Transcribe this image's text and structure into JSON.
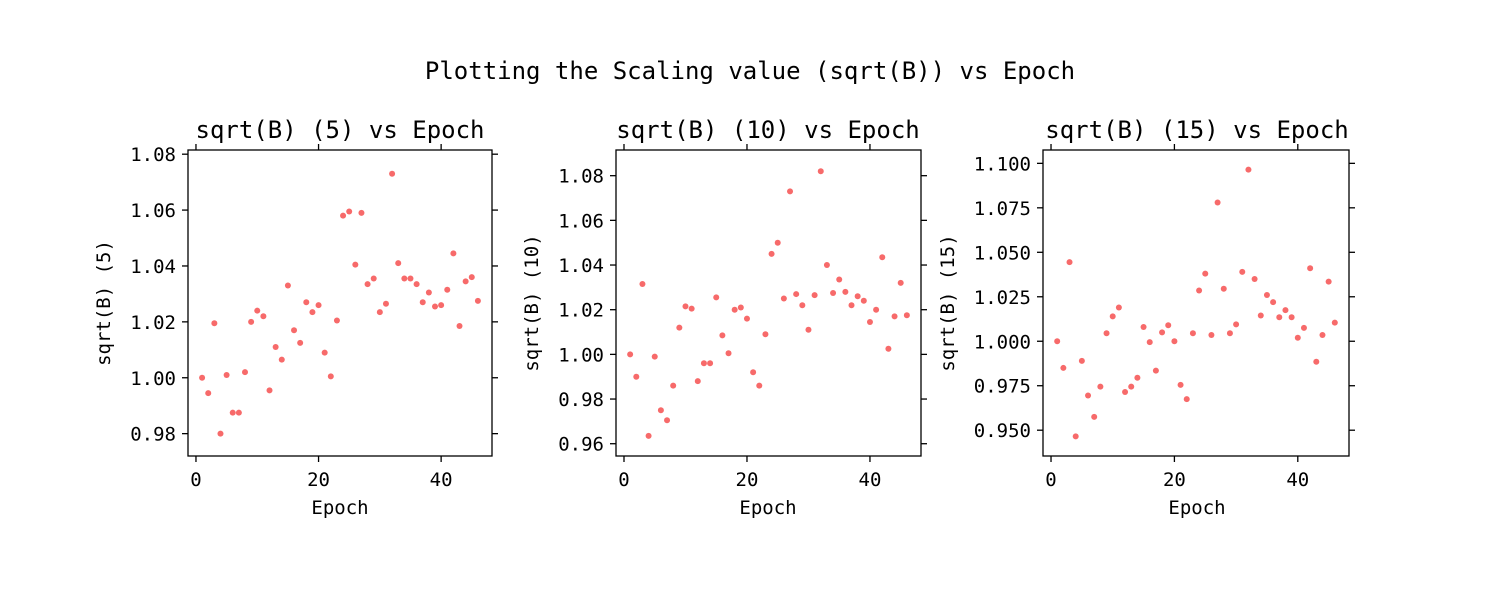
{
  "suptitle": "Plotting the Scaling value (sqrt(B)) vs Epoch",
  "colors": {
    "marker": "#f76a6a",
    "axes": "#000000",
    "background": "#ffffff"
  },
  "chart_data": [
    {
      "type": "scatter",
      "title": "sqrt(B) (5) vs Epoch",
      "xlabel": "Epoch",
      "ylabel": "sqrt(B) (5)",
      "xlim": [
        -1.3,
        48.3
      ],
      "ylim": [
        0.972,
        1.0815
      ],
      "xticks": [
        0,
        20,
        40
      ],
      "xtick_labels": [
        "0",
        "20",
        "40"
      ],
      "yticks": [
        0.98,
        1.0,
        1.02,
        1.04,
        1.06,
        1.08
      ],
      "ytick_labels": [
        "0.98",
        "1.00",
        "1.02",
        "1.04",
        "1.06",
        "1.08"
      ],
      "grid": false,
      "x": [
        1,
        2,
        3,
        4,
        5,
        6,
        7,
        8,
        9,
        10,
        11,
        12,
        13,
        14,
        15,
        16,
        17,
        18,
        19,
        20,
        21,
        22,
        23,
        24,
        25,
        26,
        27,
        28,
        29,
        30,
        31,
        32,
        33,
        34,
        35,
        36,
        37,
        38,
        39,
        40,
        41,
        42,
        43,
        44,
        45,
        46
      ],
      "y": [
        1.0,
        0.9945,
        1.0195,
        0.98,
        1.001,
        0.9875,
        0.9875,
        1.002,
        1.02,
        1.024,
        1.022,
        0.9955,
        1.011,
        1.0065,
        1.033,
        1.017,
        1.0125,
        1.027,
        1.0235,
        1.026,
        1.009,
        1.0005,
        1.0205,
        1.058,
        1.0595,
        1.0405,
        1.059,
        1.0335,
        1.0355,
        1.0235,
        1.0265,
        1.073,
        1.041,
        1.0355,
        1.0355,
        1.0335,
        1.027,
        1.0305,
        1.0255,
        1.026,
        1.0315,
        1.0445,
        1.0185,
        1.0345,
        1.036,
        1.0275
      ]
    },
    {
      "type": "scatter",
      "title": "sqrt(B) (10) vs Epoch",
      "xlabel": "Epoch",
      "ylabel": "sqrt(B) (10)",
      "xlim": [
        -1.3,
        48.3
      ],
      "ylim": [
        0.9545,
        1.0915
      ],
      "xticks": [
        0,
        20,
        40
      ],
      "xtick_labels": [
        "0",
        "20",
        "40"
      ],
      "yticks": [
        0.96,
        0.98,
        1.0,
        1.02,
        1.04,
        1.06,
        1.08
      ],
      "ytick_labels": [
        "0.96",
        "0.98",
        "1.00",
        "1.02",
        "1.04",
        "1.06",
        "1.08"
      ],
      "grid": false,
      "x": [
        1,
        2,
        3,
        4,
        5,
        6,
        7,
        8,
        9,
        10,
        11,
        12,
        13,
        14,
        15,
        16,
        17,
        18,
        19,
        20,
        21,
        22,
        23,
        24,
        25,
        26,
        27,
        28,
        29,
        30,
        31,
        32,
        33,
        34,
        35,
        36,
        37,
        38,
        39,
        40,
        41,
        42,
        43,
        44,
        45,
        46
      ],
      "y": [
        1.0,
        0.99,
        1.0315,
        0.9635,
        0.999,
        0.975,
        0.9705,
        0.986,
        1.012,
        1.0215,
        1.0205,
        0.988,
        0.996,
        0.996,
        1.0255,
        1.0085,
        1.0005,
        1.02,
        1.021,
        1.016,
        0.992,
        0.986,
        1.009,
        1.045,
        1.05,
        1.025,
        1.073,
        1.027,
        1.022,
        1.011,
        1.0265,
        1.082,
        1.04,
        1.0275,
        1.0335,
        1.028,
        1.022,
        1.026,
        1.024,
        1.0145,
        1.02,
        1.0435,
        1.0025,
        1.017,
        1.032,
        1.0175
      ]
    },
    {
      "type": "scatter",
      "title": "sqrt(B) (15) vs Epoch",
      "xlabel": "Epoch",
      "ylabel": "sqrt(B) (15)",
      "xlim": [
        -1.3,
        48.3
      ],
      "ylim": [
        0.9355,
        1.1075
      ],
      "xticks": [
        0,
        20,
        40
      ],
      "xtick_labels": [
        "0",
        "20",
        "40"
      ],
      "yticks": [
        0.95,
        0.975,
        1.0,
        1.025,
        1.05,
        1.075,
        1.1
      ],
      "ytick_labels": [
        "0.950",
        "0.975",
        "1.000",
        "1.025",
        "1.050",
        "1.075",
        "1.100"
      ],
      "grid": false,
      "x": [
        1,
        2,
        3,
        4,
        5,
        6,
        7,
        8,
        9,
        10,
        11,
        12,
        13,
        14,
        15,
        16,
        17,
        18,
        19,
        20,
        21,
        22,
        23,
        24,
        25,
        26,
        27,
        28,
        29,
        30,
        31,
        32,
        33,
        34,
        35,
        36,
        37,
        38,
        39,
        40,
        41,
        42,
        43,
        44,
        45,
        46
      ],
      "y": [
        1.0,
        0.985,
        1.0445,
        0.9465,
        0.989,
        0.9695,
        0.9575,
        0.9745,
        1.0045,
        1.014,
        1.019,
        0.9715,
        0.9745,
        0.9795,
        1.008,
        0.9995,
        0.9835,
        1.005,
        1.009,
        1.0,
        0.9755,
        0.9675,
        1.0045,
        1.0285,
        1.038,
        1.0035,
        1.078,
        1.0295,
        1.0045,
        1.0095,
        1.039,
        1.0965,
        1.035,
        1.0145,
        1.026,
        1.022,
        1.0135,
        1.0175,
        1.0135,
        1.002,
        1.0075,
        1.041,
        0.9885,
        1.0035,
        1.0335,
        1.0105
      ]
    }
  ]
}
